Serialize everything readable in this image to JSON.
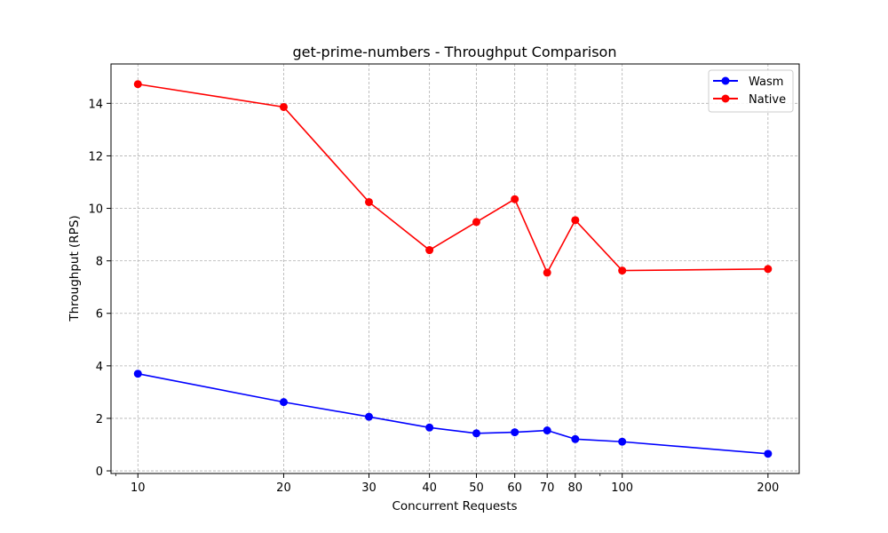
{
  "chart_data": {
    "type": "line",
    "title": "get-prime-numbers - Throughput Comparison",
    "xlabel": "Concurrent Requests",
    "ylabel": "Throughput (RPS)",
    "x_scale": "log",
    "x": [
      10,
      20,
      30,
      40,
      50,
      60,
      70,
      80,
      100,
      200
    ],
    "x_tick_labels": [
      "10",
      "20",
      "30",
      "40",
      "50",
      "60",
      "70",
      "80",
      "100",
      "200"
    ],
    "y_ticks": [
      0,
      2,
      4,
      6,
      8,
      10,
      12,
      14
    ],
    "y_tick_labels": [
      "0",
      "2",
      "4",
      "6",
      "8",
      "10",
      "12",
      "14"
    ],
    "ylim": [
      -0.1,
      15.5
    ],
    "xlim": [
      8.8,
      232
    ],
    "grid": true,
    "legend_position": "top-right",
    "series": [
      {
        "name": "Wasm",
        "color": "#0000ff",
        "marker": "circle",
        "values": [
          3.7,
          2.62,
          2.06,
          1.65,
          1.43,
          1.47,
          1.54,
          1.21,
          1.11,
          0.65
        ]
      },
      {
        "name": "Native",
        "color": "#ff0000",
        "marker": "circle",
        "values": [
          14.73,
          13.86,
          10.24,
          8.41,
          9.48,
          10.35,
          7.55,
          9.55,
          7.63,
          7.69
        ]
      }
    ]
  }
}
